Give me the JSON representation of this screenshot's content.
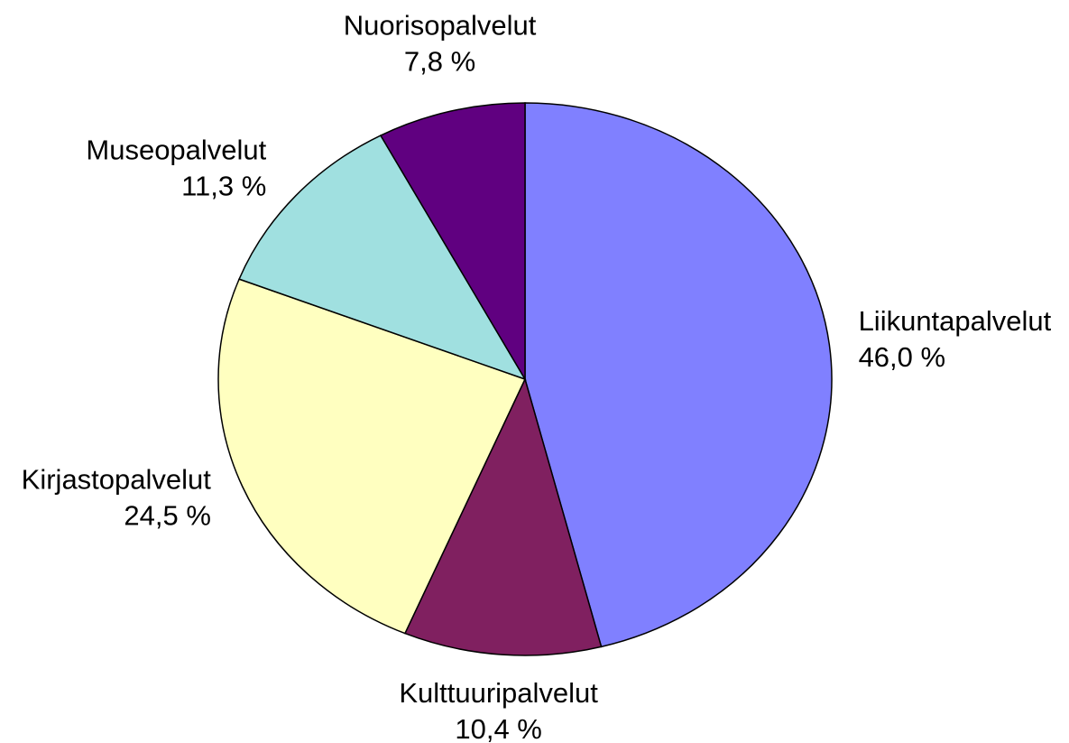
{
  "chart_data": {
    "type": "pie",
    "categories": [
      "Liikuntapalvelut",
      "Kulttuuripalvelut",
      "Kirjastopalvelut",
      "Museopalvelut",
      "Nuorisopalvelut"
    ],
    "values": [
      46.0,
      10.4,
      24.5,
      11.3,
      7.8
    ],
    "value_labels": [
      "46,0 %",
      "10,4 %",
      "24,5 %",
      "11,3 %",
      "7,8 %"
    ],
    "colors": [
      "#8080ff",
      "#802060",
      "#ffffc0",
      "#a0e0e0",
      "#600080"
    ]
  }
}
